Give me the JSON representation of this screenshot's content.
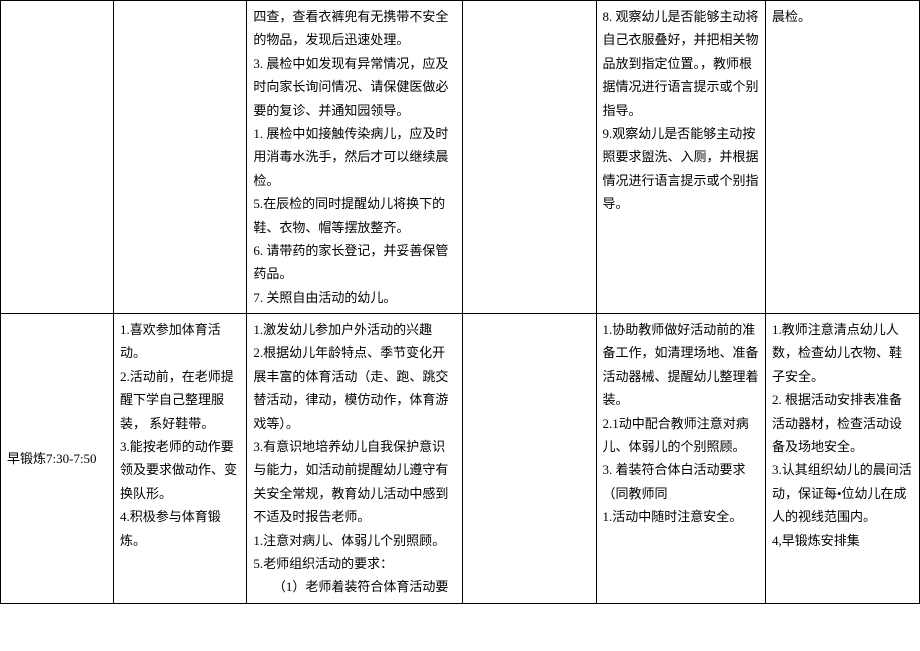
{
  "rows": [
    {
      "time": "",
      "colA": "",
      "colB": "四查，查看衣裤兜有无携带不安全的物品，发现后迅速处理。\n3. 晨检中如发现有异常情况，应及时向家长询问情况、请保健医做必要的复诊、并通知园领导。\n1. 展检中如接触传染病儿，应及时用消毒水洗手，然后才可以继续晨检。\n5.在辰检的同时提醒幼儿将换下的鞋、衣物、帽等摆放整齐。\n6. 请带药的家长登记，并妥善保管药品。\n7. 关照自由活动的幼儿。",
      "colC": "",
      "colD": "8. 观察幼儿是否能够主动将自己衣服叠好，并把相关物品放到指定位置。，教师根据情况进行语言提示或个别指导。\n9.观察幼儿是否能够主动按照要求盥洗、入厕，并根据情况进行语言提示或个别指导。",
      "colE": "晨检。"
    },
    {
      "time": "早锻炼7:30-7:50",
      "colA": "1.喜欢参加体育活动。\n2.活动前，在老师提醒下学自己整理服装， 系好鞋带。\n3.能按老师的动作要领及要求做动作、变换队形。\n4.积极参与体育锻炼。",
      "colB": "1.激发幼儿参加户外活动的兴趣\n2.根据幼儿年龄特点、季节变化开展丰富的体育活动（走、跑、跳交替活动，律动，模仿动作，体育游戏等）。\n3.有意识地培养幼儿自我保护意识与能力，如活动前提醒幼儿遵守有关安全常规，教育幼儿活动中感到不适及时报告老师。\n1.注意对病儿、体弱儿个别照顾。\n5.老师组织活动的要求：\n　　（1）老师着装符合体育活动要",
      "colC": "",
      "colD": "1.协助教师做好活动前的准备工作，如清理场地、准备活动器械、提醒幼儿整理着装。\n2.1动中配合教师注意对病儿、体弱儿的个别照顾。\n3. 着装符合体白活动要求（同教师同\n1.活动中随时注意安全。",
      "colE": "1.教师注意清点幼儿人数，检查幼儿衣物、鞋子安全。\n2. 根据活动安排表准备活动器材，检查活动设备及场地安全。\n3.认其组织幼儿的晨间活动，保证每•位幼儿在成人的视线范围内。\n4,早锻炼安排集"
    }
  ],
  "styling": {
    "border_color": "#000000",
    "background_color": "#ffffff",
    "text_color": "#000000",
    "font_size": 13,
    "line_height": 1.8
  }
}
